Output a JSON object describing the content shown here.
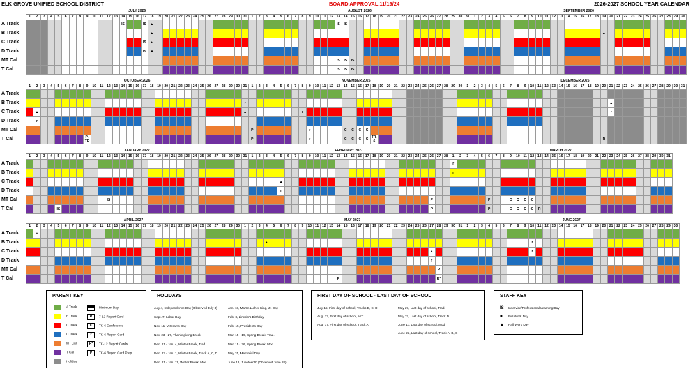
{
  "header": {
    "district": "ELK GROVE UNIFIED SCHOOL DISTRICT",
    "approval": "BOARD APPROVAL 11/19/24",
    "title": "2026-2027 SCHOOL YEAR CALENDAR"
  },
  "colors": {
    "A": "#70ad47",
    "B": "#ffff00",
    "C": "#ff0000",
    "D": "#1f6fbf",
    "MT": "#ed7d31",
    "T": "#7030a0",
    "holiday": "#8c8c8c",
    "weekend": "#d9d9d9",
    "white": "#ffffff"
  },
  "tracks": [
    "A Track",
    "B Track",
    "C Track",
    "D Track",
    "MT Cal",
    "T Cal"
  ],
  "bands": [
    {
      "months": [
        {
          "name": "JULY 2026",
          "days": 31
        },
        {
          "name": "AUGUST 2026",
          "days": 31
        },
        {
          "name": "SEPTEMBER 2026",
          "days": 30
        }
      ],
      "day_numbers": [
        1,
        2,
        3,
        4,
        5,
        6,
        7,
        8,
        9,
        10,
        11,
        12,
        13,
        14,
        15,
        16,
        17,
        18,
        19,
        20,
        21,
        22,
        23,
        24,
        25,
        26,
        27,
        28,
        29,
        30,
        31,
        1,
        2,
        3,
        4,
        5,
        6,
        7,
        8,
        9,
        10,
        11,
        12,
        13,
        14,
        15,
        16,
        17,
        18,
        19,
        20,
        21,
        22,
        23,
        24,
        25,
        26,
        27,
        28,
        29,
        30,
        31,
        1,
        2,
        3,
        4,
        5,
        6,
        7,
        8,
        9,
        10,
        11,
        12,
        13,
        14,
        15,
        16,
        17,
        18,
        19,
        20,
        21,
        22,
        23,
        24,
        25,
        26,
        27,
        28,
        29,
        30
      ],
      "marks": {
        "0-13": "IS",
        "0-16": "IS",
        "0-17": "▲",
        "1-17": "▲",
        "2-16": "IS",
        "2-17": "▲",
        "3-16": "IS",
        "3-17": "■",
        "0-43": "IS",
        "0-44": "IS",
        "4-43": "IS",
        "4-44": "IS",
        "4-45": "IS",
        "5-43": "IS",
        "5-44": "IS",
        "5-45": "IS",
        "1-80": "▲"
      }
    },
    {
      "months": [
        {
          "name": "OCTOBER 2026",
          "days": 31
        },
        {
          "name": "NOVEMBER 2026",
          "days": 30
        },
        {
          "name": "DECEMBER 2026",
          "days": 31
        }
      ],
      "day_numbers": [
        1,
        2,
        3,
        4,
        5,
        6,
        7,
        8,
        9,
        10,
        11,
        12,
        13,
        14,
        15,
        16,
        17,
        18,
        19,
        20,
        21,
        22,
        23,
        24,
        25,
        26,
        27,
        28,
        29,
        30,
        31,
        1,
        2,
        3,
        4,
        5,
        6,
        7,
        8,
        9,
        10,
        11,
        12,
        13,
        14,
        15,
        16,
        17,
        18,
        19,
        20,
        21,
        22,
        23,
        24,
        25,
        26,
        27,
        28,
        29,
        30,
        1,
        2,
        3,
        4,
        5,
        6,
        7,
        8,
        9,
        10,
        11,
        12,
        13,
        14,
        15,
        16,
        17,
        18,
        19,
        20,
        21,
        22,
        23,
        24,
        25,
        26,
        27,
        28,
        29,
        30,
        31
      ],
      "marks": {
        "2-1": "▲",
        "3-1": "r",
        "5-8": "P-TR",
        "1-30": "r",
        "2-30": "▲",
        "4-31": "P",
        "5-31": "P",
        "2-38": "r",
        "4-39": "r",
        "5-39": "r",
        "4-44": "C",
        "4-45": "C",
        "4-46": "C",
        "4-47": "C",
        "5-44": "C",
        "5-45": "C",
        "5-46": "C",
        "5-47": "C",
        "5-48": "TR-6",
        "1-81": "▲",
        "2-81": "r",
        "5-80": "R"
      }
    },
    {
      "months": [
        {
          "name": "JANUARY 2027",
          "days": 31
        },
        {
          "name": "FEBRUARY 2027",
          "days": 28
        },
        {
          "name": "MARCH 2027",
          "days": 31
        }
      ],
      "day_numbers": [
        1,
        2,
        3,
        4,
        5,
        6,
        7,
        8,
        9,
        10,
        11,
        12,
        13,
        14,
        15,
        16,
        17,
        18,
        19,
        20,
        21,
        22,
        23,
        24,
        25,
        26,
        27,
        28,
        29,
        30,
        31,
        1,
        2,
        3,
        4,
        5,
        6,
        7,
        8,
        9,
        10,
        11,
        12,
        13,
        14,
        15,
        16,
        17,
        18,
        19,
        20,
        21,
        22,
        23,
        24,
        25,
        26,
        27,
        28,
        1,
        2,
        3,
        4,
        5,
        6,
        7,
        8,
        9,
        10,
        11,
        12,
        13,
        14,
        15,
        16,
        17,
        18,
        19,
        20,
        21,
        22,
        23,
        24,
        25,
        26,
        27,
        28,
        29,
        30,
        31
      ],
      "marks": {
        "5-4": "IS",
        "4-11": "IS",
        "2-35": "▲",
        "3-35": "r",
        "4-56": "P",
        "5-56": "P",
        "4-64": "P",
        "5-64": "P",
        "0-59": "r",
        "1-59": "r",
        "4-67": "C",
        "4-68": "C",
        "4-69": "C",
        "4-70": "C",
        "5-67": "C",
        "5-68": "C",
        "5-69": "C",
        "5-70": "C",
        "5-71": "R"
      }
    },
    {
      "months": [
        {
          "name": "APRIL 2027",
          "days": 30
        },
        {
          "name": "MAY 2027",
          "days": 31
        },
        {
          "name": "JUNE 2027",
          "days": 30
        }
      ],
      "day_numbers": [
        1,
        2,
        3,
        4,
        5,
        6,
        7,
        8,
        9,
        10,
        11,
        12,
        13,
        14,
        15,
        16,
        17,
        18,
        19,
        20,
        21,
        22,
        23,
        24,
        25,
        26,
        27,
        28,
        29,
        30,
        1,
        2,
        3,
        4,
        5,
        6,
        7,
        8,
        9,
        10,
        11,
        12,
        13,
        14,
        15,
        16,
        17,
        18,
        19,
        20,
        21,
        22,
        23,
        24,
        25,
        26,
        27,
        28,
        29,
        30,
        31,
        1,
        2,
        3,
        4,
        5,
        6,
        7,
        8,
        9,
        10,
        11,
        12,
        13,
        14,
        15,
        16,
        17,
        18,
        19,
        20,
        21,
        22,
        23,
        24,
        25,
        26,
        27,
        28,
        29,
        30
      ],
      "marks": {
        "0-1": "▲",
        "1-33": "▲",
        "2-56": "▲",
        "3-56": "r",
        "4-57": "P",
        "5-57": "R*",
        "5-43": "P",
        "1-70": "r",
        "2-70": "r"
      }
    }
  ],
  "legend": {
    "parent": {
      "title": "PARENT KEY",
      "items": [
        {
          "label": "A Track",
          "color": "#70ad47"
        },
        {
          "label": "B Track",
          "color": "#ffff00"
        },
        {
          "label": "C Track",
          "color": "#ff0000"
        },
        {
          "label": "D Track",
          "color": "#1f6fbf"
        },
        {
          "label": "MT Cal",
          "color": "#ed7d31"
        },
        {
          "label": "T Cal",
          "color": "#7030a0"
        },
        {
          "label": "Holiday",
          "color": "#8c8c8c"
        }
      ],
      "codes": [
        {
          "code": "",
          "label": "Minimum Day"
        },
        {
          "code": "R",
          "label": "7-12 Report Card"
        },
        {
          "code": "C",
          "label": "TK-6 Conference"
        },
        {
          "code": "r",
          "label": "TK-6 Report Card"
        },
        {
          "code": "R*",
          "label": "TK-12 Report Cards"
        },
        {
          "code": "P",
          "label": "TK-6 Report Card Prep"
        }
      ]
    },
    "holidays": {
      "title": "HOLIDAYS",
      "col1": [
        "July 4, Independence Day (Observed July 3)",
        "Sept. 7, Labor Day",
        "Nov. 11, Veteran's Day",
        "Nov. 23 - 27, Thanksgiving Break",
        "Dec. 21 - Jan. 4, Winter Break, Trad.",
        "Dec. 23 - Jan. 1, Winter Break, Track A, C, D",
        "Dec. 21 - Jan. 11, Winter Break, Mod."
      ],
      "col2": [
        "Jan. 18, Martin Luther King, Jr. Day",
        "Feb. 8, Lincoln's Birthday",
        "Feb. 15, Presidents Day",
        "Mar. 15 - 19, Spring Break, Trad.",
        "Mar. 15 - 26, Spring Break, Mod.",
        "May 31, Memorial Day",
        "June 18, Juneteenth (Observed June 18)"
      ]
    },
    "first_last": {
      "title": "FIRST DAY OF SCHOOL - LAST DAY OF SCHOOL",
      "col1": [
        "July 15, First day of school, Tracks B, C, D",
        "Aug. 13, First day of school, M/T",
        "Aug. 17, First day of school, Track A"
      ],
      "col2": [
        "May 27, Last day of school, Trad.",
        "May 27, Last day of school, Track D",
        "June 11, Last day of school, Mod.",
        "June 25, Last day of school, Track A, B, C"
      ]
    },
    "staff": {
      "title": "STAFF KEY",
      "items": [
        {
          "code": "IS",
          "label": "Inservice/Professional Learning Day"
        },
        {
          "code": "■",
          "label": "Full Work Day"
        },
        {
          "code": "▲",
          "label": "Half Work Day"
        }
      ]
    }
  }
}
